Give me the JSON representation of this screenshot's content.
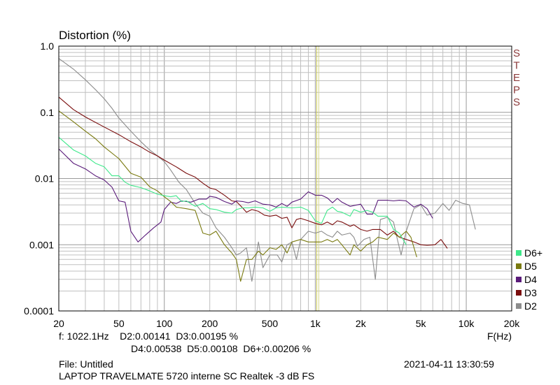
{
  "chart_data": {
    "type": "line",
    "title": "Distortion (%)",
    "xlabel": "F(Hz)",
    "ylabel": "Distortion (%)",
    "x_scale": "log",
    "y_scale": "log",
    "xlim": [
      20,
      20000
    ],
    "ylim": [
      0.0001,
      1.0
    ],
    "grid": true,
    "legend_position": "bottom-right",
    "x_ticks": [
      {
        "v": 20,
        "label": "20"
      },
      {
        "v": 50,
        "label": "50"
      },
      {
        "v": 100,
        "label": "100"
      },
      {
        "v": 200,
        "label": "200"
      },
      {
        "v": 500,
        "label": "500"
      },
      {
        "v": 1000,
        "label": "1k"
      },
      {
        "v": 2000,
        "label": "2k"
      },
      {
        "v": 5000,
        "label": "5k"
      },
      {
        "v": 10000,
        "label": "10k"
      },
      {
        "v": 20000,
        "label": "20k"
      }
    ],
    "y_ticks": [
      {
        "v": 1.0,
        "label": "1.0"
      },
      {
        "v": 0.1,
        "label": "0.1"
      },
      {
        "v": 0.01,
        "label": "0.01"
      },
      {
        "v": 0.001,
        "label": "0.001"
      },
      {
        "v": 0.0001,
        "label": "0.0001"
      }
    ],
    "marker_frequency": 1022.1,
    "series": [
      {
        "name": "D2",
        "color": "#8c8c8c",
        "points": [
          [
            20,
            0.65
          ],
          [
            25,
            0.45
          ],
          [
            30,
            0.31
          ],
          [
            35,
            0.22
          ],
          [
            40,
            0.16
          ],
          [
            45,
            0.115
          ],
          [
            50,
            0.082
          ],
          [
            60,
            0.052
          ],
          [
            70,
            0.036
          ],
          [
            80,
            0.027
          ],
          [
            90,
            0.022
          ],
          [
            100,
            0.018
          ],
          [
            110,
            0.0135
          ],
          [
            125,
            0.0088
          ],
          [
            140,
            0.0068
          ],
          [
            160,
            0.0042
          ],
          [
            180,
            0.003
          ],
          [
            200,
            0.0027
          ],
          [
            220,
            0.0018
          ],
          [
            250,
            0.0013
          ],
          [
            280,
            0.0009
          ],
          [
            300,
            0.0007
          ],
          [
            320,
            0.00075
          ],
          [
            350,
            0.0009
          ],
          [
            380,
            0.00028
          ],
          [
            420,
            0.0011
          ],
          [
            450,
            0.00045
          ],
          [
            500,
            0.0007
          ],
          [
            560,
            0.0007
          ],
          [
            600,
            0.00055
          ],
          [
            650,
            0.001
          ],
          [
            700,
            0.0011
          ],
          [
            750,
            0.0006
          ],
          [
            800,
            0.0012
          ],
          [
            900,
            0.0016
          ],
          [
            1000,
            0.0015
          ],
          [
            1100,
            0.0016
          ],
          [
            1200,
            0.0014
          ],
          [
            1300,
            0.0013
          ],
          [
            1400,
            0.0016
          ],
          [
            1500,
            0.0014
          ],
          [
            1700,
            0.0015
          ],
          [
            1800,
            0.0013
          ],
          [
            1900,
            0.00095
          ],
          [
            2100,
            0.0012
          ],
          [
            2300,
            0.0013
          ],
          [
            2500,
            0.0003
          ],
          [
            2700,
            0.0024
          ],
          [
            3000,
            0.0026
          ],
          [
            3300,
            0.0022
          ],
          [
            3500,
            0.0012
          ],
          [
            3700,
            0.0007
          ],
          [
            4000,
            0.0016
          ],
          [
            4500,
            0.0035
          ],
          [
            5000,
            0.004
          ],
          [
            5500,
            0.0028
          ],
          [
            6200,
            0.003
          ],
          [
            7000,
            0.0042
          ],
          [
            7700,
            0.0033
          ],
          [
            8500,
            0.0047
          ],
          [
            9500,
            0.0042
          ],
          [
            10500,
            0.004
          ],
          [
            11500,
            0.0017
          ]
        ]
      },
      {
        "name": "D3",
        "color": "#7a0d0d",
        "points": [
          [
            20,
            0.17
          ],
          [
            25,
            0.11
          ],
          [
            30,
            0.085
          ],
          [
            40,
            0.06
          ],
          [
            50,
            0.046
          ],
          [
            60,
            0.036
          ],
          [
            70,
            0.03
          ],
          [
            80,
            0.025
          ],
          [
            90,
            0.022
          ],
          [
            100,
            0.019
          ],
          [
            120,
            0.015
          ],
          [
            140,
            0.012
          ],
          [
            160,
            0.0105
          ],
          [
            180,
            0.0085
          ],
          [
            200,
            0.0072
          ],
          [
            220,
            0.0068
          ],
          [
            250,
            0.0056
          ],
          [
            280,
            0.0046
          ],
          [
            300,
            0.0045
          ],
          [
            330,
            0.0036
          ],
          [
            350,
            0.0031
          ],
          [
            380,
            0.0034
          ],
          [
            420,
            0.0032
          ],
          [
            460,
            0.0028
          ],
          [
            500,
            0.0027
          ],
          [
            550,
            0.0028
          ],
          [
            600,
            0.0025
          ],
          [
            650,
            0.0026
          ],
          [
            700,
            0.0018
          ],
          [
            750,
            0.0024
          ],
          [
            800,
            0.0025
          ],
          [
            900,
            0.0023
          ],
          [
            1000,
            0.0021
          ],
          [
            1100,
            0.002
          ],
          [
            1200,
            0.0022
          ],
          [
            1300,
            0.002
          ],
          [
            1400,
            0.0023
          ],
          [
            1500,
            0.0022
          ],
          [
            1700,
            0.0019
          ],
          [
            1800,
            0.002
          ],
          [
            2000,
            0.0017
          ],
          [
            2200,
            0.0016
          ],
          [
            2400,
            0.0017
          ],
          [
            2700,
            0.0017
          ],
          [
            3000,
            0.0014
          ],
          [
            3300,
            0.0016
          ],
          [
            3600,
            0.0013
          ],
          [
            4000,
            0.0012
          ],
          [
            4500,
            0.0011
          ],
          [
            5000,
            0.001
          ],
          [
            5500,
            0.00098
          ],
          [
            6200,
            0.001
          ],
          [
            6800,
            0.0012
          ],
          [
            7500,
            0.00088
          ]
        ]
      },
      {
        "name": "D4",
        "color": "#5a1b7a",
        "points": [
          [
            20,
            0.028
          ],
          [
            25,
            0.017
          ],
          [
            30,
            0.014
          ],
          [
            35,
            0.011
          ],
          [
            40,
            0.0095
          ],
          [
            45,
            0.0074
          ],
          [
            50,
            0.0046
          ],
          [
            55,
            0.0044
          ],
          [
            60,
            0.0016
          ],
          [
            67,
            0.0011
          ],
          [
            75,
            0.0014
          ],
          [
            85,
            0.0018
          ],
          [
            95,
            0.0022
          ],
          [
            100,
            0.0034
          ],
          [
            110,
            0.0044
          ],
          [
            120,
            0.0042
          ],
          [
            130,
            0.0046
          ],
          [
            150,
            0.0044
          ],
          [
            170,
            0.0049
          ],
          [
            190,
            0.0049
          ],
          [
            200,
            0.0054
          ],
          [
            220,
            0.0052
          ],
          [
            250,
            0.0045
          ],
          [
            280,
            0.0041
          ],
          [
            300,
            0.0046
          ],
          [
            330,
            0.0045
          ],
          [
            360,
            0.0043
          ],
          [
            400,
            0.0046
          ],
          [
            450,
            0.0041
          ],
          [
            500,
            0.004
          ],
          [
            550,
            0.0037
          ],
          [
            600,
            0.0042
          ],
          [
            650,
            0.0038
          ],
          [
            700,
            0.0044
          ],
          [
            800,
            0.0049
          ],
          [
            900,
            0.0063
          ],
          [
            1000,
            0.0056
          ],
          [
            1100,
            0.0056
          ],
          [
            1200,
            0.0051
          ],
          [
            1300,
            0.0043
          ],
          [
            1400,
            0.005
          ],
          [
            1500,
            0.0044
          ],
          [
            1700,
            0.0038
          ],
          [
            1800,
            0.0039
          ],
          [
            2000,
            0.0041
          ],
          [
            2200,
            0.0029
          ],
          [
            2400,
            0.0029
          ],
          [
            2600,
            0.0047
          ],
          [
            3000,
            0.0047
          ],
          [
            3300,
            0.0046
          ],
          [
            3600,
            0.0047
          ],
          [
            4000,
            0.0046
          ],
          [
            4500,
            0.0037
          ],
          [
            5000,
            0.0041
          ],
          [
            5500,
            0.0035
          ],
          [
            6000,
            0.0025
          ]
        ]
      },
      {
        "name": "D5",
        "color": "#7a7a10",
        "points": [
          [
            20,
            0.105
          ],
          [
            25,
            0.072
          ],
          [
            30,
            0.052
          ],
          [
            35,
            0.04
          ],
          [
            40,
            0.03
          ],
          [
            50,
            0.02
          ],
          [
            60,
            0.012
          ],
          [
            70,
            0.0105
          ],
          [
            80,
            0.0075
          ],
          [
            90,
            0.0065
          ],
          [
            100,
            0.0053
          ],
          [
            110,
            0.0045
          ],
          [
            120,
            0.0037
          ],
          [
            140,
            0.0035
          ],
          [
            160,
            0.0033
          ],
          [
            180,
            0.0015
          ],
          [
            200,
            0.0014
          ],
          [
            220,
            0.0016
          ],
          [
            250,
            0.001
          ],
          [
            280,
            0.00075
          ],
          [
            300,
            0.0006
          ],
          [
            320,
            0.00028
          ],
          [
            350,
            0.0006
          ],
          [
            380,
            0.0006
          ],
          [
            420,
            0.0008
          ],
          [
            450,
            0.0007
          ],
          [
            500,
            0.0009
          ],
          [
            550,
            0.00085
          ],
          [
            600,
            0.001
          ],
          [
            650,
            0.00075
          ],
          [
            700,
            0.0011
          ],
          [
            800,
            0.0012
          ],
          [
            900,
            0.0011
          ],
          [
            1000,
            0.0011
          ],
          [
            1100,
            0.0011
          ],
          [
            1200,
            0.0012
          ],
          [
            1300,
            0.0011
          ],
          [
            1400,
            0.0012
          ],
          [
            1500,
            0.001
          ],
          [
            1700,
            0.0007
          ],
          [
            1800,
            0.001
          ],
          [
            2000,
            0.0008
          ],
          [
            2200,
            0.001
          ],
          [
            2400,
            0.0011
          ],
          [
            2600,
            0.0013
          ],
          [
            3000,
            0.0012
          ],
          [
            3300,
            0.0015
          ],
          [
            3600,
            0.0013
          ],
          [
            4000,
            0.0016
          ],
          [
            4300,
            0.0013
          ],
          [
            4700,
            0.00065
          ]
        ]
      },
      {
        "name": "D6+",
        "color": "#3ee88a",
        "points": [
          [
            20,
            0.042
          ],
          [
            25,
            0.027
          ],
          [
            30,
            0.022
          ],
          [
            35,
            0.017
          ],
          [
            40,
            0.015
          ],
          [
            45,
            0.011
          ],
          [
            50,
            0.011
          ],
          [
            55,
            0.0088
          ],
          [
            60,
            0.0079
          ],
          [
            70,
            0.0073
          ],
          [
            80,
            0.0065
          ],
          [
            90,
            0.0058
          ],
          [
            100,
            0.0055
          ],
          [
            110,
            0.0053
          ],
          [
            120,
            0.0055
          ],
          [
            130,
            0.0045
          ],
          [
            140,
            0.0046
          ],
          [
            160,
            0.0038
          ],
          [
            180,
            0.0042
          ],
          [
            200,
            0.0035
          ],
          [
            220,
            0.0034
          ],
          [
            250,
            0.0031
          ],
          [
            280,
            0.003
          ],
          [
            300,
            0.0034
          ],
          [
            330,
            0.0036
          ],
          [
            360,
            0.0036
          ],
          [
            400,
            0.0037
          ],
          [
            450,
            0.0036
          ],
          [
            500,
            0.0032
          ],
          [
            550,
            0.0036
          ],
          [
            600,
            0.0037
          ],
          [
            700,
            0.0036
          ],
          [
            800,
            0.0037
          ],
          [
            900,
            0.0033
          ],
          [
            1000,
            0.0023
          ],
          [
            1100,
            0.0021
          ],
          [
            1200,
            0.0033
          ],
          [
            1300,
            0.0037
          ],
          [
            1400,
            0.0032
          ],
          [
            1500,
            0.0031
          ],
          [
            1700,
            0.0027
          ],
          [
            1800,
            0.0034
          ],
          [
            2000,
            0.0031
          ],
          [
            2200,
            0.0033
          ],
          [
            2400,
            0.0031
          ],
          [
            2600,
            0.0027
          ],
          [
            3000,
            0.0027
          ],
          [
            3300,
            0.0017
          ],
          [
            3600,
            0.0015
          ],
          [
            4000,
            0.001
          ]
        ]
      }
    ],
    "legend": [
      "D6+",
      "D5",
      "D4",
      "D3",
      "D2"
    ]
  },
  "steps_label": "STEPS",
  "readout": {
    "line1": "f: 1022.1Hz    D2:0.00141  D3:0.00195 %",
    "line2": "D4:0.00538  D5:0.00108  D6+:0.00206 %"
  },
  "footer": {
    "file": "File: Untitled",
    "timestamp": "2021-04-11 13:30:59",
    "device": "LAPTOP TRAVELMATE 5720 interne SC Realtek -3 dB FS"
  },
  "colors": {
    "grid": "#c0c0c0",
    "frame": "#000000",
    "marker": "#c8c850",
    "steps": "#8b3a3a"
  }
}
